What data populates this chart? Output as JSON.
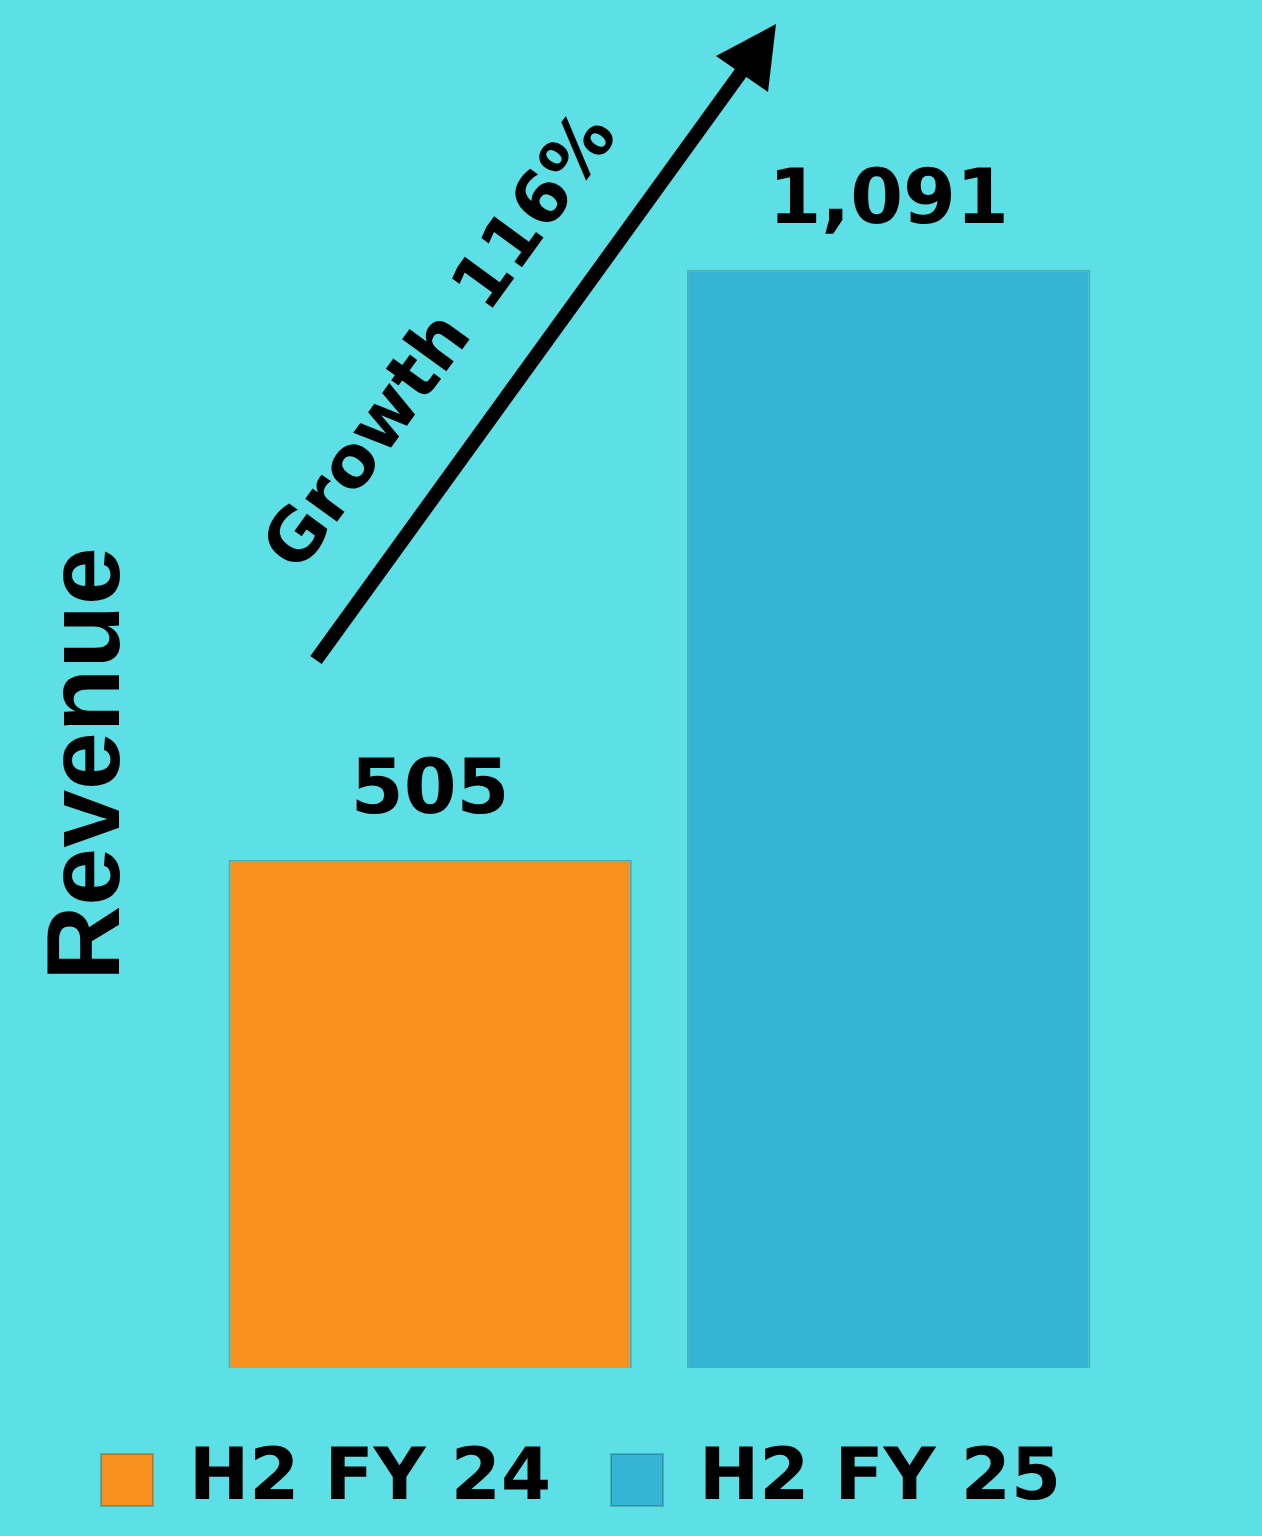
{
  "chart_data": {
    "type": "bar",
    "ylabel": "Revenue",
    "categories": [
      null
    ],
    "series": [
      {
        "name": "H2 FY 24",
        "color": "#f7901e",
        "values": [
          505
        ]
      },
      {
        "name": "H2 FY 25",
        "color": "#35b4d6",
        "values": [
          1091
        ],
        "value_labels": [
          "1,091"
        ]
      }
    ],
    "tick_labels": false,
    "grid": false,
    "legend": "bottom",
    "data_labels": true,
    "annotations": [
      "Growth 116%"
    ]
  }
}
